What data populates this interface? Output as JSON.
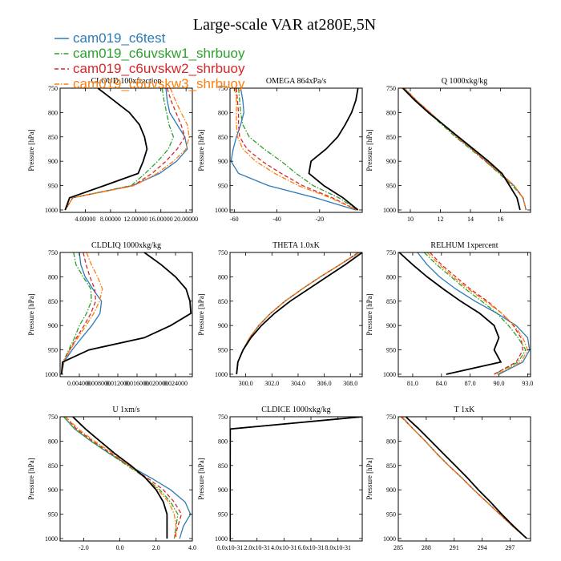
{
  "title": "Large-scale VAR at280E,5N",
  "legend": [
    {
      "label": "cam019_c6test",
      "color": "#2c7bb6",
      "dash": "solid"
    },
    {
      "label": "cam019_c6uvskw1_shrbuoy",
      "color": "#2ca02c",
      "dash": "dashdot"
    },
    {
      "label": "cam019_c6uvskw2_shrbuoy",
      "color": "#d62728",
      "dash": "dash"
    },
    {
      "label": "cam019_c6uvskw3_shrbuoy",
      "color": "#ff7f0e",
      "dash": "dashdot"
    },
    {
      "label": "",
      "color": "#000000",
      "dash": "solid"
    }
  ],
  "chart_data": [
    {
      "type": "line",
      "title": "CLOUD 100xfraction",
      "ylabel": "Pressure [hPa]",
      "xlim": [
        0,
        21
      ],
      "ylim": [
        750,
        1005
      ],
      "xticks": [
        4,
        8,
        12,
        16,
        20
      ],
      "xtick_labels": [
        "4.00000",
        "8.00000",
        "12.00000",
        "16.00000",
        "20.00000"
      ],
      "yticks": [
        750,
        800,
        850,
        900,
        950,
        1000
      ],
      "ytick_labels": [
        "750",
        "800",
        "850",
        "900",
        "950",
        "1000"
      ],
      "y": [
        750,
        775,
        800,
        825,
        850,
        875,
        900,
        925,
        950,
        975,
        1000
      ],
      "series": [
        {
          "values": [
            16.8,
            17.0,
            17.4,
            18.6,
            19.8,
            20.2,
            18.5,
            15.8,
            11.5,
            2.0,
            0.8
          ]
        },
        {
          "values": [
            16.2,
            16.5,
            16.9,
            17.3,
            18.0,
            17.2,
            15.5,
            13.5,
            11.3,
            2.0,
            0.8
          ]
        },
        {
          "values": [
            17.0,
            17.6,
            18.4,
            19.2,
            19.8,
            18.6,
            16.8,
            14.6,
            11.6,
            2.0,
            0.8
          ]
        },
        {
          "values": [
            17.5,
            18.3,
            19.2,
            20.2,
            20.5,
            20.0,
            18.0,
            15.4,
            11.8,
            2.0,
            0.8
          ]
        },
        {
          "values": [
            6.0,
            8.5,
            11.0,
            12.6,
            13.4,
            13.8,
            13.2,
            12.4,
            7.0,
            1.5,
            0.8
          ]
        }
      ]
    },
    {
      "type": "line",
      "title": "OMEGA 864xPa/s",
      "ylabel": "Pressure [hPa]",
      "xlim": [
        -62,
        0
      ],
      "ylim": [
        750,
        1005
      ],
      "xticks": [
        -60,
        -40,
        -20
      ],
      "xtick_labels": [
        "-60",
        "-40",
        "-20"
      ],
      "yticks": [
        750,
        800,
        850,
        900,
        950,
        1000
      ],
      "ytick_labels": [
        "750",
        "800",
        "850",
        "900",
        "950",
        "1000"
      ],
      "y": [
        750,
        775,
        800,
        825,
        850,
        875,
        900,
        925,
        950,
        975,
        1000
      ],
      "series": [
        {
          "values": [
            -57.0,
            -56.0,
            -55.5,
            -57.0,
            -59.0,
            -60.5,
            -61.5,
            -58.0,
            -44.0,
            -22.0,
            -3.0
          ]
        },
        {
          "values": [
            -58.0,
            -57.5,
            -57.0,
            -56.0,
            -53.0,
            -46.0,
            -38.0,
            -31.0,
            -23.0,
            -11.0,
            -2.0
          ]
        },
        {
          "values": [
            -59.0,
            -58.5,
            -58.0,
            -58.0,
            -57.5,
            -54.0,
            -47.0,
            -38.0,
            -28.0,
            -14.0,
            -2.5
          ]
        },
        {
          "values": [
            -59.5,
            -59.0,
            -59.0,
            -59.0,
            -58.5,
            -56.0,
            -50.0,
            -41.0,
            -30.0,
            -15.0,
            -2.5
          ]
        },
        {
          "values": [
            -2.0,
            -3.0,
            -5.0,
            -8.0,
            -11.5,
            -17.0,
            -24.0,
            -25.0,
            -18.0,
            -9.0,
            -2.0
          ]
        }
      ]
    },
    {
      "type": "line",
      "title": "Q 1000xkg/kg",
      "ylabel": "Pressure [hPa]",
      "xlim": [
        9.2,
        18
      ],
      "ylim": [
        750,
        1005
      ],
      "xticks": [
        10,
        12,
        14,
        16
      ],
      "xtick_labels": [
        "10",
        "12",
        "14",
        "16"
      ],
      "yticks": [
        750,
        800,
        850,
        900,
        950,
        1000
      ],
      "ytick_labels": [
        "750",
        "800",
        "850",
        "900",
        "950",
        "1000"
      ],
      "y": [
        750,
        775,
        800,
        825,
        850,
        875,
        900,
        925,
        950,
        975,
        1000
      ],
      "series": [
        {
          "values": [
            9.6,
            10.4,
            11.3,
            12.2,
            13.1,
            14.1,
            15.1,
            16.0,
            16.9,
            17.5,
            17.7
          ]
        },
        {
          "values": [
            9.6,
            10.3,
            11.2,
            12.1,
            13.0,
            14.0,
            15.0,
            15.9,
            16.8,
            17.5,
            17.7
          ]
        },
        {
          "values": [
            9.6,
            10.4,
            11.3,
            12.2,
            13.1,
            14.1,
            15.0,
            16.0,
            16.9,
            17.5,
            17.7
          ]
        },
        {
          "values": [
            9.6,
            10.4,
            11.3,
            12.2,
            13.1,
            14.1,
            15.1,
            16.0,
            16.9,
            17.5,
            17.7
          ]
        },
        {
          "values": [
            9.5,
            10.3,
            11.2,
            12.2,
            13.2,
            14.2,
            15.2,
            16.1,
            16.6,
            17.1,
            17.3
          ]
        }
      ]
    },
    {
      "type": "line",
      "title": "CLDLIQ 1000xkg/kg",
      "ylabel": "Pressure [hPa]",
      "xlim": [
        0,
        0.0275
      ],
      "ylim": [
        750,
        1005
      ],
      "xticks": [
        0.004,
        0.008,
        0.012,
        0.016,
        0.02,
        0.024
      ],
      "xtick_labels": [
        "0.004000",
        "0.008000",
        "0.012000",
        "0.016000",
        "0.020000",
        "0.024000"
      ],
      "yticks": [
        750,
        800,
        850,
        900,
        950,
        1000
      ],
      "ytick_labels": [
        "750",
        "800",
        "850",
        "900",
        "950",
        "1000"
      ],
      "y": [
        750,
        775,
        800,
        825,
        850,
        875,
        900,
        925,
        950,
        975,
        1000
      ],
      "series": [
        {
          "values": [
            0.004,
            0.0043,
            0.0052,
            0.0068,
            0.0086,
            0.0083,
            0.0066,
            0.0045,
            0.0025,
            0.0008,
            0.0003
          ]
        },
        {
          "values": [
            0.0028,
            0.0033,
            0.0048,
            0.0064,
            0.0065,
            0.0055,
            0.004,
            0.003,
            0.0018,
            0.0006,
            0.0003
          ]
        },
        {
          "values": [
            0.0048,
            0.0054,
            0.0062,
            0.0072,
            0.0074,
            0.0064,
            0.005,
            0.0034,
            0.002,
            0.0007,
            0.0003
          ]
        },
        {
          "values": [
            0.0055,
            0.0065,
            0.0078,
            0.0088,
            0.0082,
            0.007,
            0.0054,
            0.0037,
            0.0021,
            0.0007,
            0.0003
          ]
        },
        {
          "values": [
            0.0175,
            0.021,
            0.024,
            0.0262,
            0.027,
            0.0272,
            0.023,
            0.0175,
            0.006,
            0.0005,
            0.0003
          ]
        }
      ]
    },
    {
      "type": "line",
      "title": "THETA 1.0xK",
      "ylabel": "Pressure [hPa]",
      "xlim": [
        298.8,
        308.9
      ],
      "ylim": [
        750,
        1005
      ],
      "xticks": [
        300,
        302,
        304,
        306,
        308
      ],
      "xtick_labels": [
        "300.0",
        "302.0",
        "304.0",
        "306.0",
        "308.0"
      ],
      "yticks": [
        750,
        800,
        850,
        900,
        950,
        1000
      ],
      "ytick_labels": [
        "750",
        "800",
        "850",
        "900",
        "950",
        "1000"
      ],
      "y": [
        750,
        775,
        800,
        825,
        850,
        875,
        900,
        925,
        950,
        975,
        1000
      ],
      "series": [
        {
          "values": [
            308.7,
            307.2,
            305.7,
            304.3,
            303.0,
            301.9,
            301.0,
            300.3,
            299.8,
            299.4,
            299.3
          ]
        },
        {
          "values": [
            308.6,
            307.2,
            305.7,
            304.3,
            303.0,
            301.9,
            301.0,
            300.3,
            299.8,
            299.4,
            299.3
          ]
        },
        {
          "values": [
            308.6,
            307.2,
            305.7,
            304.3,
            303.0,
            301.9,
            301.0,
            300.3,
            299.8,
            299.4,
            299.3
          ]
        },
        {
          "values": [
            308.7,
            307.2,
            305.7,
            304.3,
            303.0,
            301.9,
            301.0,
            300.3,
            299.8,
            299.4,
            299.3
          ]
        },
        {
          "values": [
            308.9,
            307.6,
            306.2,
            304.8,
            303.4,
            302.2,
            301.2,
            300.4,
            299.8,
            299.4,
            299.3
          ]
        }
      ]
    },
    {
      "type": "line",
      "title": "RELHUM 1xpercent",
      "ylabel": "Pressure [hPa]",
      "xlim": [
        79.5,
        93.3
      ],
      "ylim": [
        750,
        1005
      ],
      "xticks": [
        81,
        84,
        87,
        90,
        93
      ],
      "xtick_labels": [
        "81.0",
        "84.0",
        "87.0",
        "90.0",
        "93.0"
      ],
      "yticks": [
        750,
        800,
        850,
        900,
        950,
        1000
      ],
      "ytick_labels": [
        "750",
        "800",
        "850",
        "900",
        "950",
        "1000"
      ],
      "y": [
        750,
        775,
        800,
        825,
        850,
        875,
        900,
        925,
        950,
        975,
        1000
      ],
      "series": [
        {
          "values": [
            81.5,
            82.5,
            83.8,
            85.5,
            87.5,
            89.8,
            91.8,
            93.0,
            93.2,
            92.5,
            90.0
          ]
        },
        {
          "values": [
            82.2,
            83.5,
            85.0,
            86.5,
            88.2,
            89.8,
            91.0,
            92.0,
            92.8,
            92.0,
            89.5
          ]
        },
        {
          "values": [
            82.8,
            84.0,
            85.5,
            87.0,
            88.8,
            90.3,
            91.5,
            92.3,
            92.5,
            91.8,
            89.5
          ]
        },
        {
          "values": [
            82.5,
            83.8,
            85.2,
            86.8,
            88.6,
            90.3,
            91.6,
            92.5,
            93.0,
            92.3,
            89.8
          ]
        },
        {
          "values": [
            79.6,
            81.0,
            82.5,
            84.2,
            86.0,
            88.0,
            89.5,
            90.0,
            89.5,
            90.2,
            84.5
          ]
        }
      ]
    },
    {
      "type": "line",
      "title": "U 1xm/s",
      "ylabel": "Pressure [hPa]",
      "xlim": [
        -3.3,
        4.0
      ],
      "ylim": [
        750,
        1005
      ],
      "xticks": [
        -2,
        0,
        2,
        4
      ],
      "xtick_labels": [
        "-2.0",
        "0.0",
        "2.0",
        "4.0"
      ],
      "yticks": [
        750,
        800,
        850,
        900,
        950,
        1000
      ],
      "ytick_labels": [
        "750",
        "800",
        "850",
        "900",
        "950",
        "1000"
      ],
      "y": [
        750,
        775,
        800,
        825,
        850,
        875,
        900,
        925,
        950,
        975,
        1000
      ],
      "series": [
        {
          "values": [
            -3.1,
            -2.5,
            -1.6,
            -0.6,
            0.5,
            1.7,
            2.8,
            3.6,
            3.9,
            3.5,
            3.3
          ]
        },
        {
          "values": [
            -3.1,
            -2.5,
            -1.6,
            -0.6,
            0.4,
            1.4,
            2.2,
            2.8,
            3.2,
            3.1,
            3.0
          ]
        },
        {
          "values": [
            -3.0,
            -2.4,
            -1.5,
            -0.5,
            0.5,
            1.5,
            2.4,
            3.0,
            3.4,
            3.2,
            3.0
          ]
        },
        {
          "values": [
            -3.0,
            -2.3,
            -1.4,
            -0.4,
            0.5,
            1.4,
            2.1,
            2.7,
            3.0,
            3.1,
            3.1
          ]
        },
        {
          "values": [
            -2.6,
            -1.9,
            -1.1,
            -0.3,
            0.6,
            1.4,
            2.0,
            2.4,
            2.6,
            2.6,
            2.6
          ]
        }
      ]
    },
    {
      "type": "line",
      "title": "CLDICE 1000xkg/kg",
      "ylabel": "Pressure [hPa]",
      "xlim": [
        0,
        9.8e-31
      ],
      "ylim": [
        750,
        1005
      ],
      "xticks": [
        0,
        2e-31,
        4e-31,
        6e-31,
        8e-31
      ],
      "xtick_labels": [
        "0.0x10-31",
        "2.0x10-31",
        "4.0x10-31",
        "6.0x10-31",
        "8.0x10-31"
      ],
      "yticks": [
        750,
        800,
        850,
        900,
        950,
        1000
      ],
      "ytick_labels": [
        "750",
        "800",
        "850",
        "900",
        "950",
        "1000"
      ],
      "y": [
        750,
        775,
        776,
        1005
      ],
      "series": [
        {
          "values": [
            9.8e-31,
            5e-33,
            2e-33,
            0.0
          ]
        },
        {
          "values": [
            9.8e-31,
            5e-33,
            2e-33,
            0.0
          ]
        },
        {
          "values": [
            9.8e-31,
            5e-33,
            2e-33,
            0.0
          ]
        },
        {
          "values": [
            9.8e-31,
            5e-33,
            2e-33,
            0.0
          ]
        },
        {
          "values": [
            9.8e-31,
            5e-33,
            2e-33,
            0.0
          ]
        }
      ]
    },
    {
      "type": "line",
      "title": "T 1xK",
      "ylabel": "Pressure [hPa]",
      "xlim": [
        285,
        299.2
      ],
      "ylim": [
        750,
        1005
      ],
      "xticks": [
        285,
        288,
        291,
        294,
        297
      ],
      "xtick_labels": [
        "285",
        "288",
        "291",
        "294",
        "297"
      ],
      "yticks": [
        750,
        800,
        850,
        900,
        950,
        1000
      ],
      "ytick_labels": [
        "750",
        "800",
        "850",
        "900",
        "950",
        "1000"
      ],
      "y": [
        750,
        775,
        800,
        825,
        850,
        875,
        900,
        925,
        950,
        975,
        1000
      ],
      "series": [
        {
          "values": [
            285.4,
            286.6,
            287.9,
            289.1,
            290.4,
            291.8,
            293.1,
            294.5,
            295.9,
            297.3,
            298.8
          ]
        },
        {
          "values": [
            285.3,
            286.6,
            287.9,
            289.1,
            290.4,
            291.8,
            293.1,
            294.5,
            295.9,
            297.3,
            298.8
          ]
        },
        {
          "values": [
            285.3,
            286.6,
            287.9,
            289.1,
            290.4,
            291.8,
            293.1,
            294.5,
            295.9,
            297.3,
            298.8
          ]
        },
        {
          "values": [
            285.4,
            286.6,
            287.9,
            289.1,
            290.4,
            291.8,
            293.1,
            294.5,
            295.9,
            297.3,
            298.8
          ]
        },
        {
          "values": [
            285.8,
            287.2,
            288.5,
            289.8,
            291.1,
            292.4,
            293.6,
            294.9,
            296.1,
            297.4,
            298.8
          ]
        }
      ]
    }
  ]
}
